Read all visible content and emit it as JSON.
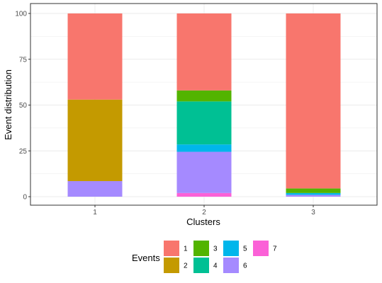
{
  "chart_data": {
    "type": "bar",
    "stacked": true,
    "categories": [
      "1",
      "2",
      "3"
    ],
    "xlabel": "Clusters",
    "ylabel": "Event distribution",
    "ylim": [
      0,
      100
    ],
    "yticks": [
      "0",
      "25",
      "50",
      "75",
      "100"
    ],
    "grid": true,
    "legend_title": "Events",
    "legend_position": "bottom",
    "series": [
      {
        "name": "1",
        "color": "#F8766D",
        "values": [
          47,
          42,
          95.5
        ]
      },
      {
        "name": "2",
        "color": "#C49A00",
        "values": [
          44.5,
          0,
          0
        ]
      },
      {
        "name": "3",
        "color": "#53B400",
        "values": [
          0,
          6,
          2.5
        ]
      },
      {
        "name": "4",
        "color": "#00C094",
        "values": [
          0,
          23.5,
          0
        ]
      },
      {
        "name": "5",
        "color": "#00B6EB",
        "values": [
          0,
          4,
          1
        ]
      },
      {
        "name": "6",
        "color": "#A58AFF",
        "values": [
          8.5,
          22.5,
          1
        ]
      },
      {
        "name": "7",
        "color": "#FB61D7",
        "values": [
          0,
          2,
          0
        ]
      }
    ]
  }
}
